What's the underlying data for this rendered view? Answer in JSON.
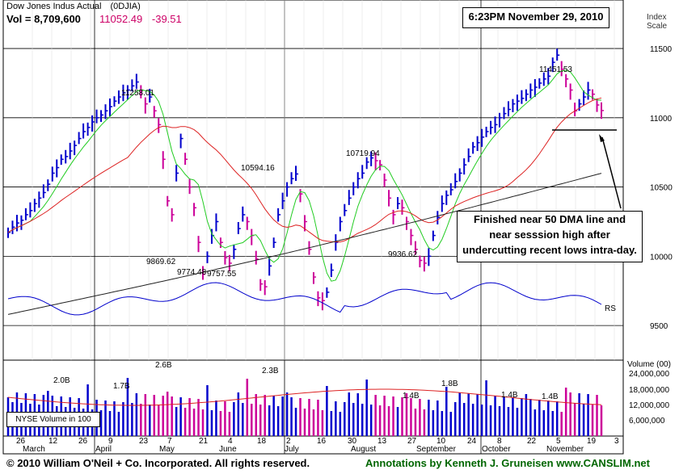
{
  "header": {
    "title": "Dow Jones Indus Actual",
    "symbol": "(0DJIA)",
    "volume_label": "Vol = 8,709,600",
    "price": "11052.49",
    "change": "-39.51",
    "timestamp": "6:23PM November 29, 2010",
    "index_scale": "Index",
    "index_scale2": "Scale"
  },
  "footer": {
    "copyright": "© 2010 William O'Neil + Co. Incorporated. All rights reserved.",
    "annotations": "Annotations by Kenneth J. Gruneisen www.CANSLIM.net"
  },
  "annotation_box": [
    "Finished near 50 DMA line and",
    "near sesssion high after",
    "undercutting recent lows intra-day."
  ],
  "rs_label": "RS",
  "volume_panel": {
    "label": "Volume (00)",
    "legend": "NYSE Volume in 100",
    "axis_labels": [
      "24,000,000",
      "18,000,000",
      "12,000,000",
      "6,000,000"
    ]
  },
  "colors": {
    "up_bar": "#0000cc",
    "down_bar": "#cc0099",
    "ma50": "#dd2222",
    "ma10": "#22cc22",
    "ma200": "#222222",
    "rs": "#0000cc",
    "footer_green": "#006600",
    "change_red": "#cc0066"
  },
  "chart_data": {
    "type": "candlestick",
    "title": "Dow Jones Indus Actual (0DJIA)",
    "y_axis": {
      "ticks": [
        9500,
        10000,
        10500,
        11000,
        11500
      ],
      "ylim": [
        9250,
        11850
      ],
      "scale": "index"
    },
    "x_axis": {
      "month_labels": [
        "March",
        "April",
        "May",
        "June",
        "July",
        "August",
        "September",
        "October",
        "November"
      ],
      "day_labels": [
        "26",
        "12",
        "26",
        "9",
        "23",
        "7",
        "21",
        "4",
        "18",
        "2",
        "16",
        "30",
        "13",
        "27",
        "10",
        "24",
        "8",
        "22",
        "5",
        "19",
        "3"
      ]
    },
    "price_series": [
      {
        "c": 10172
      },
      {
        "c": 10210
      },
      {
        "c": 10240
      },
      {
        "c": 10260
      },
      {
        "c": 10300
      },
      {
        "c": 10330
      },
      {
        "c": 10380
      },
      {
        "c": 10420
      },
      {
        "c": 10460
      },
      {
        "c": 10520
      },
      {
        "c": 10600
      },
      {
        "c": 10640
      },
      {
        "c": 10700
      },
      {
        "c": 10720
      },
      {
        "c": 10760
      },
      {
        "c": 10800
      },
      {
        "c": 10850
      },
      {
        "c": 10900
      },
      {
        "c": 10930
      },
      {
        "c": 10970
      },
      {
        "c": 11000
      },
      {
        "c": 11020
      },
      {
        "c": 11050
      },
      {
        "c": 11080
      },
      {
        "c": 11120
      },
      {
        "c": 11150
      },
      {
        "c": 11180
      },
      {
        "c": 11200
      },
      {
        "c": 11230
      },
      {
        "c": 11258
      },
      {
        "c": 11200
      },
      {
        "c": 11100
      },
      {
        "c": 11150
      },
      {
        "c": 11050
      },
      {
        "c": 10950
      },
      {
        "c": 10700
      },
      {
        "c": 10400
      },
      {
        "c": 10300
      },
      {
        "c": 10600
      },
      {
        "c": 10850
      },
      {
        "c": 10700
      },
      {
        "c": 10500
      },
      {
        "c": 10350
      },
      {
        "c": 10100
      },
      {
        "c": 9870
      },
      {
        "c": 10000
      },
      {
        "c": 10150
      },
      {
        "c": 10250
      },
      {
        "c": 10100
      },
      {
        "c": 9990
      },
      {
        "c": 9950
      },
      {
        "c": 10050
      },
      {
        "c": 10200
      },
      {
        "c": 10300
      },
      {
        "c": 10250
      },
      {
        "c": 10150
      },
      {
        "c": 9980
      },
      {
        "c": 9800
      },
      {
        "c": 9780
      },
      {
        "c": 9930
      },
      {
        "c": 10100
      },
      {
        "c": 10300
      },
      {
        "c": 10400
      },
      {
        "c": 10500
      },
      {
        "c": 10560
      },
      {
        "c": 10594
      },
      {
        "c": 10450
      },
      {
        "c": 10250
      },
      {
        "c": 10050
      },
      {
        "c": 9850
      },
      {
        "c": 9700
      },
      {
        "c": 9680
      },
      {
        "c": 9740
      },
      {
        "c": 9900
      },
      {
        "c": 10100
      },
      {
        "c": 10250
      },
      {
        "c": 10330
      },
      {
        "c": 10420
      },
      {
        "c": 10500
      },
      {
        "c": 10560
      },
      {
        "c": 10600
      },
      {
        "c": 10680
      },
      {
        "c": 10710
      },
      {
        "c": 10690
      },
      {
        "c": 10660
      },
      {
        "c": 10550
      },
      {
        "c": 10420
      },
      {
        "c": 10300
      },
      {
        "c": 10380
      },
      {
        "c": 10350
      },
      {
        "c": 10250
      },
      {
        "c": 10150
      },
      {
        "c": 10050
      },
      {
        "c": 9970
      },
      {
        "c": 9950
      },
      {
        "c": 10000
      },
      {
        "c": 10150
      },
      {
        "c": 10280
      },
      {
        "c": 10380
      },
      {
        "c": 10440
      },
      {
        "c": 10480
      },
      {
        "c": 10540
      },
      {
        "c": 10600
      },
      {
        "c": 10660
      },
      {
        "c": 10720
      },
      {
        "c": 10790
      },
      {
        "c": 10820
      },
      {
        "c": 10860
      },
      {
        "c": 10900
      },
      {
        "c": 10930
      },
      {
        "c": 10950
      },
      {
        "c": 11000
      },
      {
        "c": 11030
      },
      {
        "c": 11060
      },
      {
        "c": 11100
      },
      {
        "c": 11120
      },
      {
        "c": 11140
      },
      {
        "c": 11170
      },
      {
        "c": 11200
      },
      {
        "c": 11220
      },
      {
        "c": 11250
      },
      {
        "c": 11280
      },
      {
        "c": 11300
      },
      {
        "c": 11400
      },
      {
        "c": 11452
      },
      {
        "c": 11350
      },
      {
        "c": 11280
      },
      {
        "c": 11200
      },
      {
        "c": 11050
      },
      {
        "c": 11100
      },
      {
        "c": 11150
      },
      {
        "c": 11200
      },
      {
        "c": 11170
      },
      {
        "c": 11092
      },
      {
        "c": 11052
      }
    ],
    "labels": [
      {
        "text": "11258.01",
        "value": 11258.01
      },
      {
        "text": "9869.62",
        "value": 9869.62
      },
      {
        "text": "9774.48",
        "value": 9774.48
      },
      {
        "text": "9757.55",
        "value": 9757.55
      },
      {
        "text": "10594.16",
        "value": 10594.16
      },
      {
        "text": "10719.94",
        "value": 10719.94
      },
      {
        "text": "9936.62",
        "value": 9936.62
      },
      {
        "text": "11451.53",
        "value": 11451.53
      }
    ],
    "volume_labels": [
      "2.0B",
      "1.7B",
      "2.6B",
      "2.3B",
      "1.4B",
      "1.8B",
      "1.4B",
      "1.4B"
    ],
    "series": [
      {
        "name": "50 DMA"
      },
      {
        "name": "10 DMA"
      },
      {
        "name": "200 DMA"
      },
      {
        "name": "RS"
      }
    ]
  }
}
